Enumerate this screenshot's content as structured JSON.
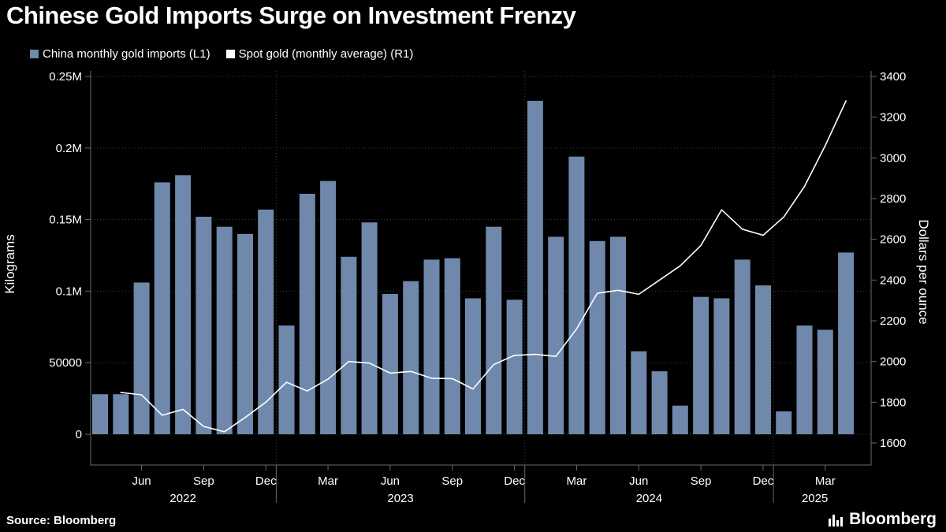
{
  "title": "Chinese Gold Imports Surge on Investment Frenzy",
  "footer": {
    "source": "Source: Bloomberg",
    "brand_label": "Bloomberg"
  },
  "colors": {
    "background": "#000000",
    "bar": "#6f88ab",
    "line": "#ffffff",
    "text": "#ffffff",
    "grid": "#404040",
    "axis": "#6a6a6a"
  },
  "chart_data": {
    "type": "bar+line",
    "title": "Chinese Gold Imports Surge on Investment Frenzy",
    "legend_position": "top-left",
    "grid": true,
    "x": [
      "Apr 2022",
      "May 2022",
      "Jun 2022",
      "Jul 2022",
      "Aug 2022",
      "Sep 2022",
      "Oct 2022",
      "Nov 2022",
      "Dec 2022",
      "Jan 2023",
      "Feb 2023",
      "Mar 2023",
      "Apr 2023",
      "May 2023",
      "Jun 2023",
      "Jul 2023",
      "Aug 2023",
      "Sep 2023",
      "Oct 2023",
      "Nov 2023",
      "Dec 2023",
      "Jan 2024",
      "Feb 2024",
      "Mar 2024",
      "Apr 2024",
      "May 2024",
      "Jun 2024",
      "Jul 2024",
      "Aug 2024",
      "Sep 2024",
      "Oct 2024",
      "Nov 2024",
      "Dec 2024",
      "Jan 2025",
      "Feb 2025",
      "Mar 2025",
      "Apr 2025"
    ],
    "series": [
      {
        "name": "China monthly gold imports (L1)",
        "type": "bar",
        "axis": "left",
        "unit": "kilograms",
        "values": [
          28000,
          28000,
          106000,
          176000,
          181000,
          152000,
          145000,
          140000,
          157000,
          76000,
          168000,
          177000,
          124000,
          148000,
          98000,
          107000,
          122000,
          123000,
          95000,
          145000,
          94000,
          233000,
          138000,
          194000,
          135000,
          138000,
          58000,
          44000,
          20000,
          96000,
          95000,
          122000,
          104000,
          16000,
          76000,
          73000,
          127000
        ]
      },
      {
        "name": "Spot gold (monthly average) (R1)",
        "type": "line",
        "axis": "right",
        "unit": "dollars per ounce",
        "values": [
          null,
          1848,
          1836,
          1736,
          1765,
          1681,
          1655,
          1725,
          1800,
          1898,
          1855,
          1913,
          2000,
          1992,
          1943,
          1951,
          1918,
          1916,
          1865,
          1985,
          2030,
          2035,
          2025,
          2160,
          2335,
          2350,
          2330,
          2400,
          2470,
          2570,
          2745,
          2650,
          2620,
          2710,
          2860,
          3060,
          3280
        ]
      }
    ],
    "left_axis": {
      "label": "Kilograms",
      "range": [
        0,
        250000
      ],
      "ticks": [
        0,
        50000,
        100000,
        150000,
        200000,
        250000
      ],
      "tick_labels": [
        "0",
        "50000",
        "0.1M",
        "0.15M",
        "0.2M",
        "0.25M"
      ]
    },
    "right_axis": {
      "label": "Dollars per ounce",
      "range": [
        1600,
        3400
      ],
      "ticks": [
        1600,
        1800,
        2000,
        2200,
        2400,
        2600,
        2800,
        3000,
        3200,
        3400
      ]
    },
    "x_axis": {
      "month_ticks": [
        {
          "index": 2,
          "label": "Jun"
        },
        {
          "index": 5,
          "label": "Sep"
        },
        {
          "index": 8,
          "label": "Dec"
        },
        {
          "index": 11,
          "label": "Mar"
        },
        {
          "index": 14,
          "label": "Jun"
        },
        {
          "index": 17,
          "label": "Sep"
        },
        {
          "index": 20,
          "label": "Dec"
        },
        {
          "index": 23,
          "label": "Mar"
        },
        {
          "index": 26,
          "label": "Jun"
        },
        {
          "index": 29,
          "label": "Sep"
        },
        {
          "index": 32,
          "label": "Dec"
        },
        {
          "index": 35,
          "label": "Mar"
        }
      ],
      "year_labels": [
        {
          "label": "2022",
          "center_index": 4
        },
        {
          "label": "2023",
          "center_index": 14.5
        },
        {
          "label": "2024",
          "center_index": 26.5
        },
        {
          "label": "2025",
          "center_index": 34.5
        }
      ],
      "year_divider_indices": [
        8.5,
        20.5,
        32.5
      ]
    }
  }
}
